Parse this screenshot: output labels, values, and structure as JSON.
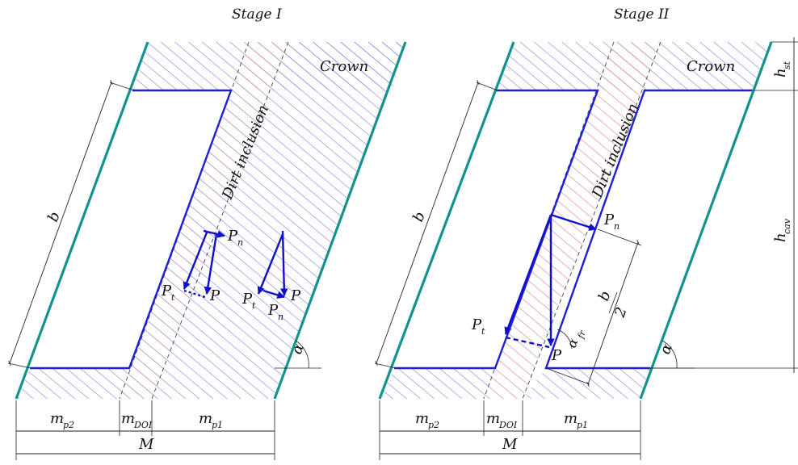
{
  "stage1": {
    "title": "Stage I",
    "crown": "Crown",
    "inclusion": "Dirt inclusion",
    "b": "b",
    "alpha": "α",
    "P": "P",
    "Pt": "P",
    "Pt_sub": "t",
    "Pn": "P",
    "Pn_sub": "n",
    "P2": "P",
    "Pt2": "P",
    "Pn2": "P",
    "mp2": "m",
    "mp2_sub": "p2",
    "mdoi": "m",
    "mdoi_sub": "DOI",
    "mp1": "m",
    "mp1_sub": "p1",
    "M": "M"
  },
  "stage2": {
    "title": "Stage II",
    "crown": "Crown",
    "inclusion": "Dirt inclusion",
    "b": "b",
    "b_half_num": "b",
    "b_half_den": "2",
    "alpha": "α",
    "alpha_fr": "α",
    "alpha_fr_sub": "fr",
    "P": "P",
    "Pt": "P",
    "Pt_sub": "t",
    "Pn": "P",
    "Pn_sub": "n",
    "hst": "h",
    "hst_sub": "st",
    "hcav": "h",
    "hcav_sub": "cav",
    "mp2": "m",
    "mp2_sub": "p2",
    "mdoi": "m",
    "mdoi_sub": "DOI",
    "mp1": "m",
    "mp1_sub": "p1",
    "M": "M"
  },
  "colors": {
    "contour": "#1f1fd6",
    "wall": "#12948c",
    "hatch_blue": "#6a6ad8",
    "hatch_red": "#d46a6a",
    "vector": "#1010c8"
  }
}
